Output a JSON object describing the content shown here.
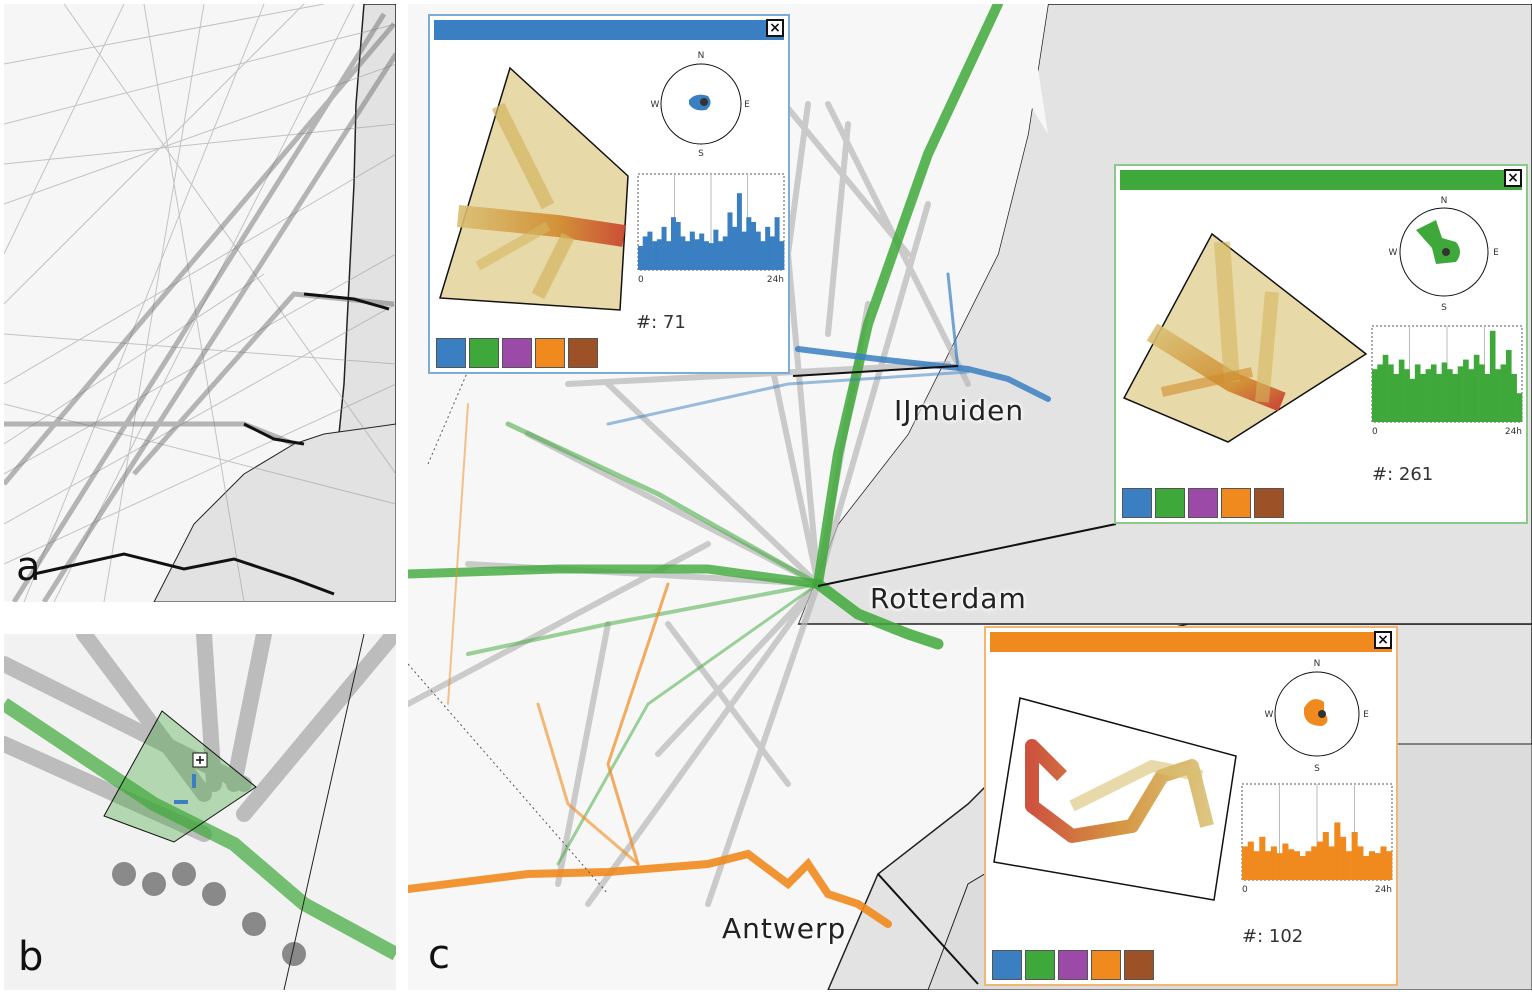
{
  "panels": {
    "a": {
      "letter": "a"
    },
    "b": {
      "letter": "b"
    },
    "c": {
      "letter": "c"
    }
  },
  "cities": {
    "ijmuiden": "IJmuiden",
    "rotterdam": "Rotterdam",
    "antwerp": "Antwerp"
  },
  "popups": [
    {
      "id": "blue",
      "color": "#3a7fc1",
      "count_label": "#: 71",
      "compass": [
        "N",
        "E",
        "S",
        "W"
      ],
      "hist_start": "0",
      "hist_end": "24h",
      "hist": [
        0.25,
        0.35,
        0.4,
        0.3,
        0.32,
        0.45,
        0.3,
        0.55,
        0.5,
        0.35,
        0.3,
        0.4,
        0.32,
        0.38,
        0.3,
        0.28,
        0.42,
        0.3,
        0.35,
        0.6,
        0.45,
        0.8,
        0.4,
        0.55,
        0.5,
        0.4,
        0.3,
        0.45,
        0.35,
        0.55,
        0.3
      ]
    },
    {
      "id": "green",
      "color": "#3fa83a",
      "count_label": "#: 261",
      "compass": [
        "N",
        "E",
        "S",
        "W"
      ],
      "hist_start": "0",
      "hist_end": "24h",
      "hist": [
        0.55,
        0.6,
        0.7,
        0.6,
        0.5,
        0.65,
        0.55,
        0.45,
        0.6,
        0.5,
        0.55,
        0.6,
        0.5,
        0.62,
        0.55,
        0.5,
        0.58,
        0.65,
        0.55,
        0.7,
        0.6,
        0.5,
        0.95,
        0.55,
        0.6,
        0.75,
        0.5,
        0.3
      ]
    },
    {
      "id": "orange",
      "color": "#f08a1e",
      "count_label": "#: 102",
      "compass": [
        "N",
        "E",
        "S",
        "W"
      ],
      "hist_start": "0",
      "hist_end": "24h",
      "hist": [
        0.35,
        0.4,
        0.3,
        0.45,
        0.3,
        0.35,
        0.28,
        0.38,
        0.32,
        0.3,
        0.25,
        0.3,
        0.35,
        0.4,
        0.5,
        0.35,
        0.6,
        0.45,
        0.3,
        0.5,
        0.35,
        0.25,
        0.3,
        0.28,
        0.35,
        0.3
      ]
    }
  ],
  "swatches": [
    "#3a7fc1",
    "#3fa83a",
    "#9b4aa8",
    "#f08a1e",
    "#9c5126"
  ],
  "close_label": "×"
}
